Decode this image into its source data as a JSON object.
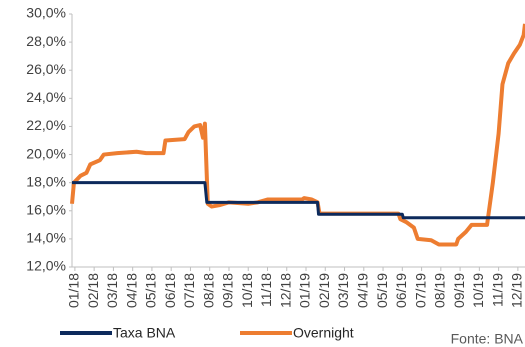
{
  "chart_data": {
    "type": "line",
    "xlim": [
      -0.15,
      23.37
    ],
    "xticks": [
      {
        "value": 0,
        "label": "01/18"
      },
      {
        "value": 1,
        "label": "02/18"
      },
      {
        "value": 2,
        "label": "03/18"
      },
      {
        "value": 3,
        "label": "04/18"
      },
      {
        "value": 4,
        "label": "05/18"
      },
      {
        "value": 5,
        "label": "06/18"
      },
      {
        "value": 6,
        "label": "07/18"
      },
      {
        "value": 7,
        "label": "08/18"
      },
      {
        "value": 8,
        "label": "09/18"
      },
      {
        "value": 9,
        "label": "10/18"
      },
      {
        "value": 10,
        "label": "11/18"
      },
      {
        "value": 11,
        "label": "12/18"
      },
      {
        "value": 12,
        "label": "01/19"
      },
      {
        "value": 13,
        "label": "02/19"
      },
      {
        "value": 14,
        "label": "03/19"
      },
      {
        "value": 15,
        "label": "04/19"
      },
      {
        "value": 16,
        "label": "05/19"
      },
      {
        "value": 17,
        "label": "06/19"
      },
      {
        "value": 18,
        "label": "07/19"
      },
      {
        "value": 19,
        "label": "08/19"
      },
      {
        "value": 20,
        "label": "09/19"
      },
      {
        "value": 21,
        "label": "10/19"
      },
      {
        "value": 22,
        "label": "11/19"
      },
      {
        "value": 23,
        "label": "12/19"
      }
    ],
    "ylim": [
      12,
      30
    ],
    "yticks": [
      {
        "value": 12,
        "label": "12,0%"
      },
      {
        "value": 14,
        "label": "14,0%"
      },
      {
        "value": 16,
        "label": "16,0%"
      },
      {
        "value": 18,
        "label": "18,0%"
      },
      {
        "value": 20,
        "label": "20,0%"
      },
      {
        "value": 22,
        "label": "22,0%"
      },
      {
        "value": 24,
        "label": "24,0%"
      },
      {
        "value": 26,
        "label": "26,0%"
      },
      {
        "value": 28,
        "label": "28,0%"
      },
      {
        "value": 30,
        "label": "30,0%"
      }
    ],
    "series": [
      {
        "name": "Taxa BNA",
        "color": "#0d2a5c",
        "x": [
          -0.15,
          6.75,
          6.85,
          12.6,
          12.65,
          17.0,
          17.05,
          23.37
        ],
        "values": [
          18.0,
          18.0,
          16.6,
          16.6,
          15.75,
          15.75,
          15.5,
          15.5
        ]
      },
      {
        "name": "Overnight",
        "color": "#ed7d31",
        "x": [
          -0.15,
          -0.05,
          0.3,
          0.6,
          0.8,
          1.3,
          1.5,
          2.2,
          3.2,
          3.7,
          4.6,
          4.7,
          5.7,
          5.9,
          6.2,
          6.5,
          6.65,
          6.75,
          6.9,
          7.1,
          7.5,
          8.0,
          9.0,
          9.5,
          10.0,
          11.8,
          11.9,
          12.3,
          12.6,
          12.7,
          16.8,
          16.9,
          17.2,
          17.6,
          17.8,
          18.5,
          18.9,
          19.8,
          19.9,
          20.3,
          20.6,
          21.4,
          21.5,
          21.7,
          22.0,
          22.2,
          22.5,
          22.8,
          23.1,
          23.3,
          23.37
        ],
        "values": [
          16.5,
          18.0,
          18.5,
          18.7,
          19.3,
          19.6,
          20.0,
          20.1,
          20.2,
          20.1,
          20.1,
          21.0,
          21.1,
          21.6,
          22.0,
          22.1,
          21.2,
          22.2,
          16.5,
          16.3,
          16.4,
          16.6,
          16.5,
          16.6,
          16.8,
          16.8,
          16.9,
          16.8,
          16.6,
          15.8,
          15.8,
          15.4,
          15.2,
          14.8,
          14.0,
          13.9,
          13.6,
          13.6,
          14.0,
          14.5,
          15.0,
          15.0,
          16.0,
          18.0,
          21.5,
          25.0,
          26.5,
          27.2,
          27.8,
          28.5,
          29.3
        ]
      }
    ],
    "source": "Fonte: BNA"
  }
}
